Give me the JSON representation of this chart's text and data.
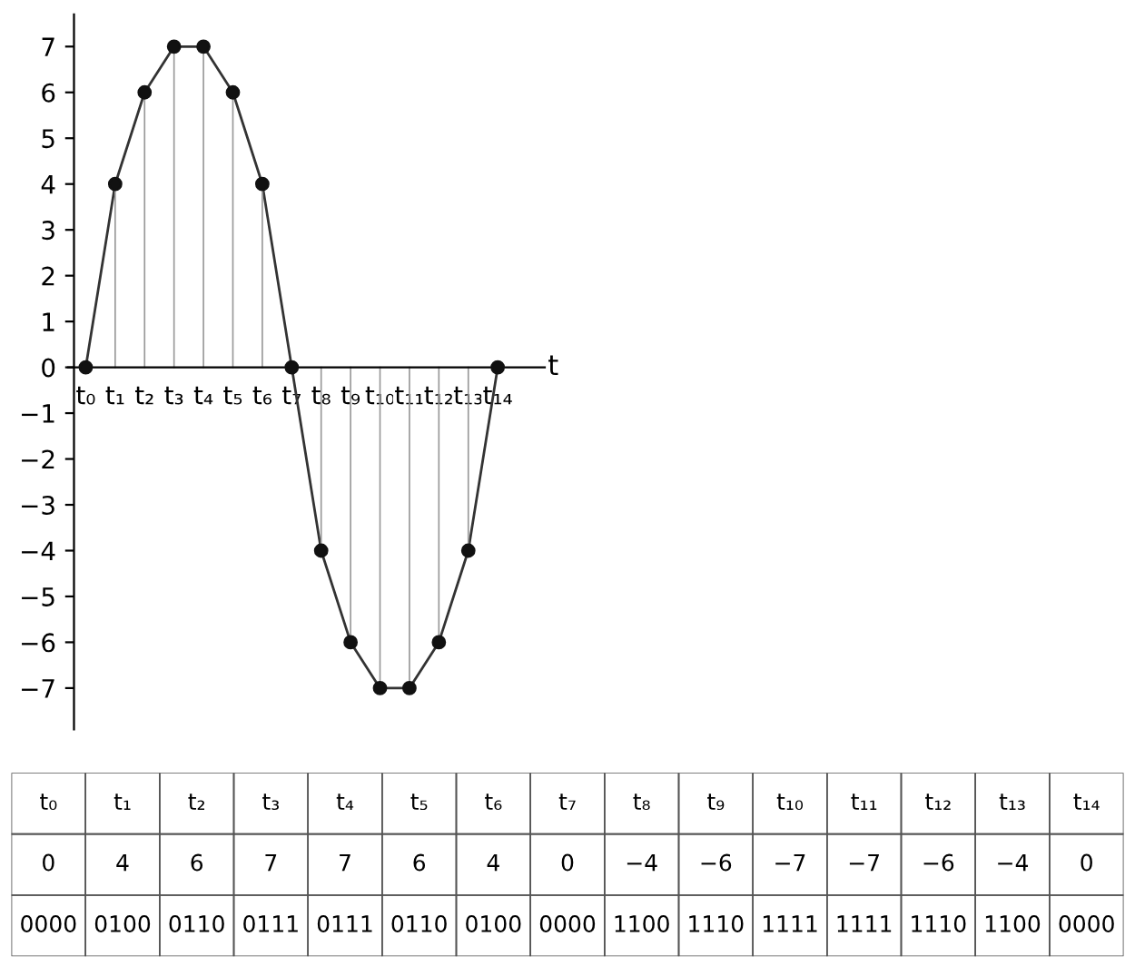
{
  "chart_data": {
    "type": "line",
    "xlabel": "t",
    "categories": [
      "t₀",
      "t₁",
      "t₂",
      "t₃",
      "t₄",
      "t₅",
      "t₆",
      "t₇",
      "t₈",
      "t₉",
      "t₁₀",
      "t₁₁",
      "t₁₂",
      "t₁₃",
      "t₁₄"
    ],
    "series": [
      {
        "color": "#333333",
        "values": [
          0,
          4,
          6,
          7,
          7,
          6,
          4,
          0,
          -4,
          -6,
          -7,
          -7,
          -6,
          -4,
          0
        ]
      },
      {
        "type": "lollipop",
        "color": "#111111",
        "marker": "circle",
        "values": [
          0,
          4,
          6,
          7,
          7,
          6,
          4,
          0,
          -4,
          -6,
          -7,
          -7,
          -6,
          -4,
          0
        ]
      }
    ],
    "ylim": [
      -7.9,
      7.7
    ],
    "yticks": [
      -7,
      -6,
      -5,
      -4,
      -3,
      -2,
      -1,
      0,
      1,
      2,
      3,
      4,
      5,
      6,
      7
    ],
    "grid": false,
    "legend": false,
    "annotations": [
      "0",
      "4",
      "6",
      "7",
      "7",
      "6",
      "4",
      "0",
      "−4",
      "−6",
      "−7",
      "−7",
      "−6",
      "−4",
      "0",
      "0000",
      "0100",
      "0110",
      "0111",
      "0111",
      "0110",
      "0100",
      "0000",
      "1100",
      "1110",
      "1111",
      "1111",
      "1110",
      "1100",
      "0000"
    ]
  }
}
